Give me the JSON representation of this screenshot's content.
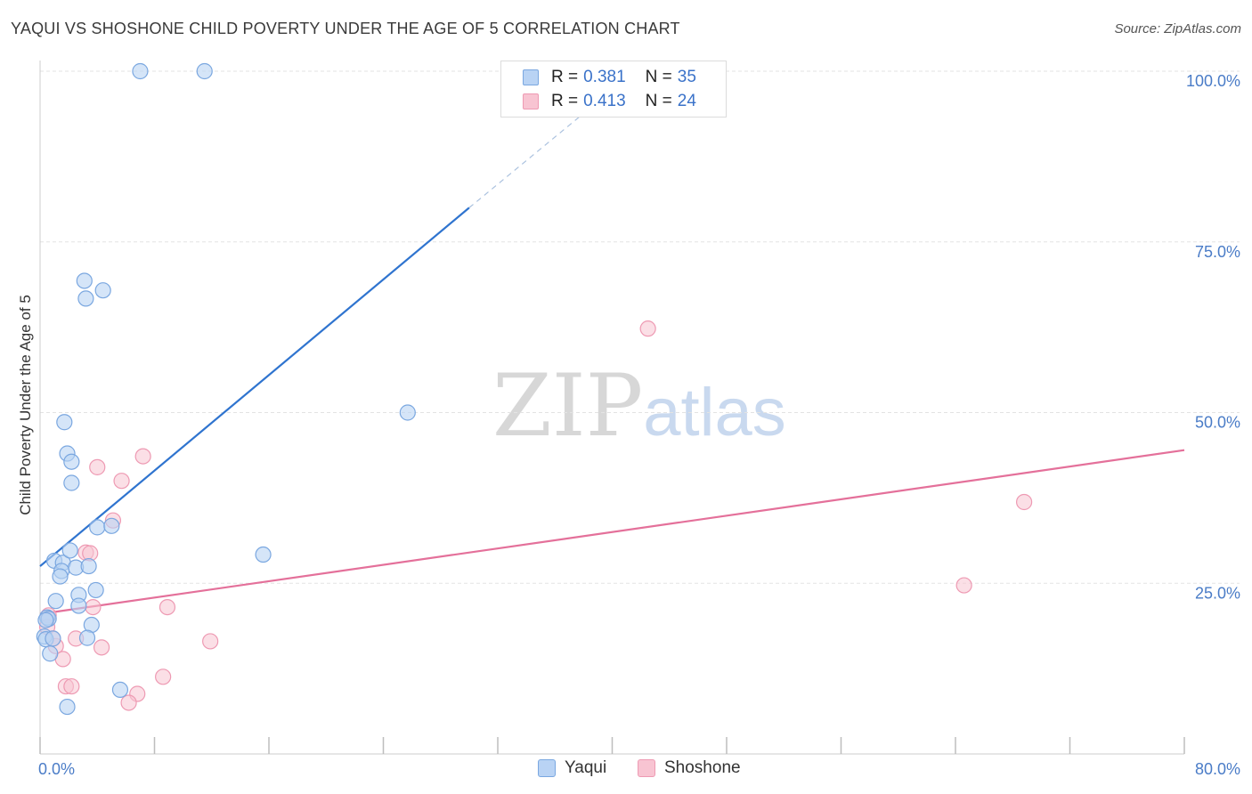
{
  "title": "YAQUI VS SHOSHONE CHILD POVERTY UNDER THE AGE OF 5 CORRELATION CHART",
  "source": "Source: ZipAtlas.com",
  "watermark": {
    "zip": "ZIP",
    "atlas": "atlas"
  },
  "legend": {
    "rows": [
      {
        "r_label": "R =",
        "r_value": "0.381",
        "n_label": "N =",
        "n_value": "35"
      },
      {
        "r_label": "R =",
        "r_value": "0.413",
        "n_label": "N =",
        "n_value": "24"
      }
    ]
  },
  "bottom_legend": [
    "Yaqui",
    "Shoshone"
  ],
  "colors": {
    "yaqui_fill": "#b9d3f4",
    "yaqui_stroke": "#7aa7e0",
    "yaqui_line": "#2f74cf",
    "shoshone_fill": "#f8c4d2",
    "shoshone_stroke": "#ee9ab3",
    "shoshone_line": "#e4709a",
    "grid": "#e3e3e3",
    "tick_label": "#4a7cc7"
  },
  "chart_data": {
    "type": "scatter",
    "title": "YAQUI VS SHOSHONE CHILD POVERTY UNDER THE AGE OF 5 CORRELATION CHART",
    "xlabel": "",
    "ylabel": "Child Poverty Under the Age of 5",
    "xlim": [
      0,
      80
    ],
    "ylim": [
      0,
      100
    ],
    "x_tick_labels": [
      "0.0%",
      "80.0%"
    ],
    "y_tick_labels": [
      "25.0%",
      "50.0%",
      "75.0%",
      "100.0%"
    ],
    "y_ticks": [
      25,
      50,
      75,
      100
    ],
    "grid": true,
    "series": [
      {
        "name": "Yaqui",
        "r": 0.381,
        "n": 35,
        "points": [
          [
            7.0,
            100.0
          ],
          [
            11.5,
            100.0
          ],
          [
            3.1,
            69.3
          ],
          [
            3.2,
            66.7
          ],
          [
            4.4,
            67.9
          ],
          [
            1.7,
            48.6
          ],
          [
            1.9,
            44.0
          ],
          [
            2.2,
            42.8
          ],
          [
            2.2,
            39.7
          ],
          [
            25.7,
            50.0
          ],
          [
            4.0,
            33.2
          ],
          [
            5.0,
            33.4
          ],
          [
            15.6,
            29.2
          ],
          [
            1.0,
            28.3
          ],
          [
            1.6,
            28.0
          ],
          [
            2.1,
            29.8
          ],
          [
            2.5,
            27.3
          ],
          [
            3.4,
            27.5
          ],
          [
            1.5,
            26.8
          ],
          [
            1.4,
            26.0
          ],
          [
            2.7,
            23.3
          ],
          [
            3.9,
            24.0
          ],
          [
            1.1,
            22.4
          ],
          [
            2.7,
            21.7
          ],
          [
            0.5,
            20.0
          ],
          [
            0.6,
            19.8
          ],
          [
            0.4,
            19.6
          ],
          [
            3.6,
            18.9
          ],
          [
            0.3,
            17.2
          ],
          [
            0.4,
            16.8
          ],
          [
            0.9,
            16.9
          ],
          [
            3.3,
            17.0
          ],
          [
            0.7,
            14.7
          ],
          [
            5.6,
            9.4
          ],
          [
            1.9,
            6.9
          ]
        ],
        "trend": {
          "x": [
            0,
            30
          ],
          "y": [
            27.5,
            80.0
          ],
          "extended_x": [
            30,
            41
          ],
          "extended_y": [
            80.0,
            99.0
          ]
        }
      },
      {
        "name": "Shoshone",
        "r": 0.413,
        "n": 24,
        "points": [
          [
            42.5,
            62.3
          ],
          [
            7.2,
            43.6
          ],
          [
            4.0,
            42.0
          ],
          [
            5.7,
            40.0
          ],
          [
            5.1,
            34.2
          ],
          [
            3.2,
            29.5
          ],
          [
            3.5,
            29.4
          ],
          [
            68.8,
            36.9
          ],
          [
            64.6,
            24.7
          ],
          [
            8.9,
            21.5
          ],
          [
            3.7,
            21.5
          ],
          [
            0.6,
            20.3
          ],
          [
            0.5,
            18.6
          ],
          [
            11.9,
            16.5
          ],
          [
            1.1,
            15.8
          ],
          [
            4.3,
            15.6
          ],
          [
            2.5,
            16.9
          ],
          [
            1.6,
            13.9
          ],
          [
            8.6,
            11.3
          ],
          [
            1.8,
            9.9
          ],
          [
            2.2,
            9.9
          ],
          [
            6.8,
            8.8
          ],
          [
            6.2,
            7.5
          ],
          [
            0.9,
            16.9
          ]
        ],
        "trend": {
          "x": [
            0,
            80
          ],
          "y": [
            20.5,
            44.5
          ]
        }
      }
    ]
  }
}
